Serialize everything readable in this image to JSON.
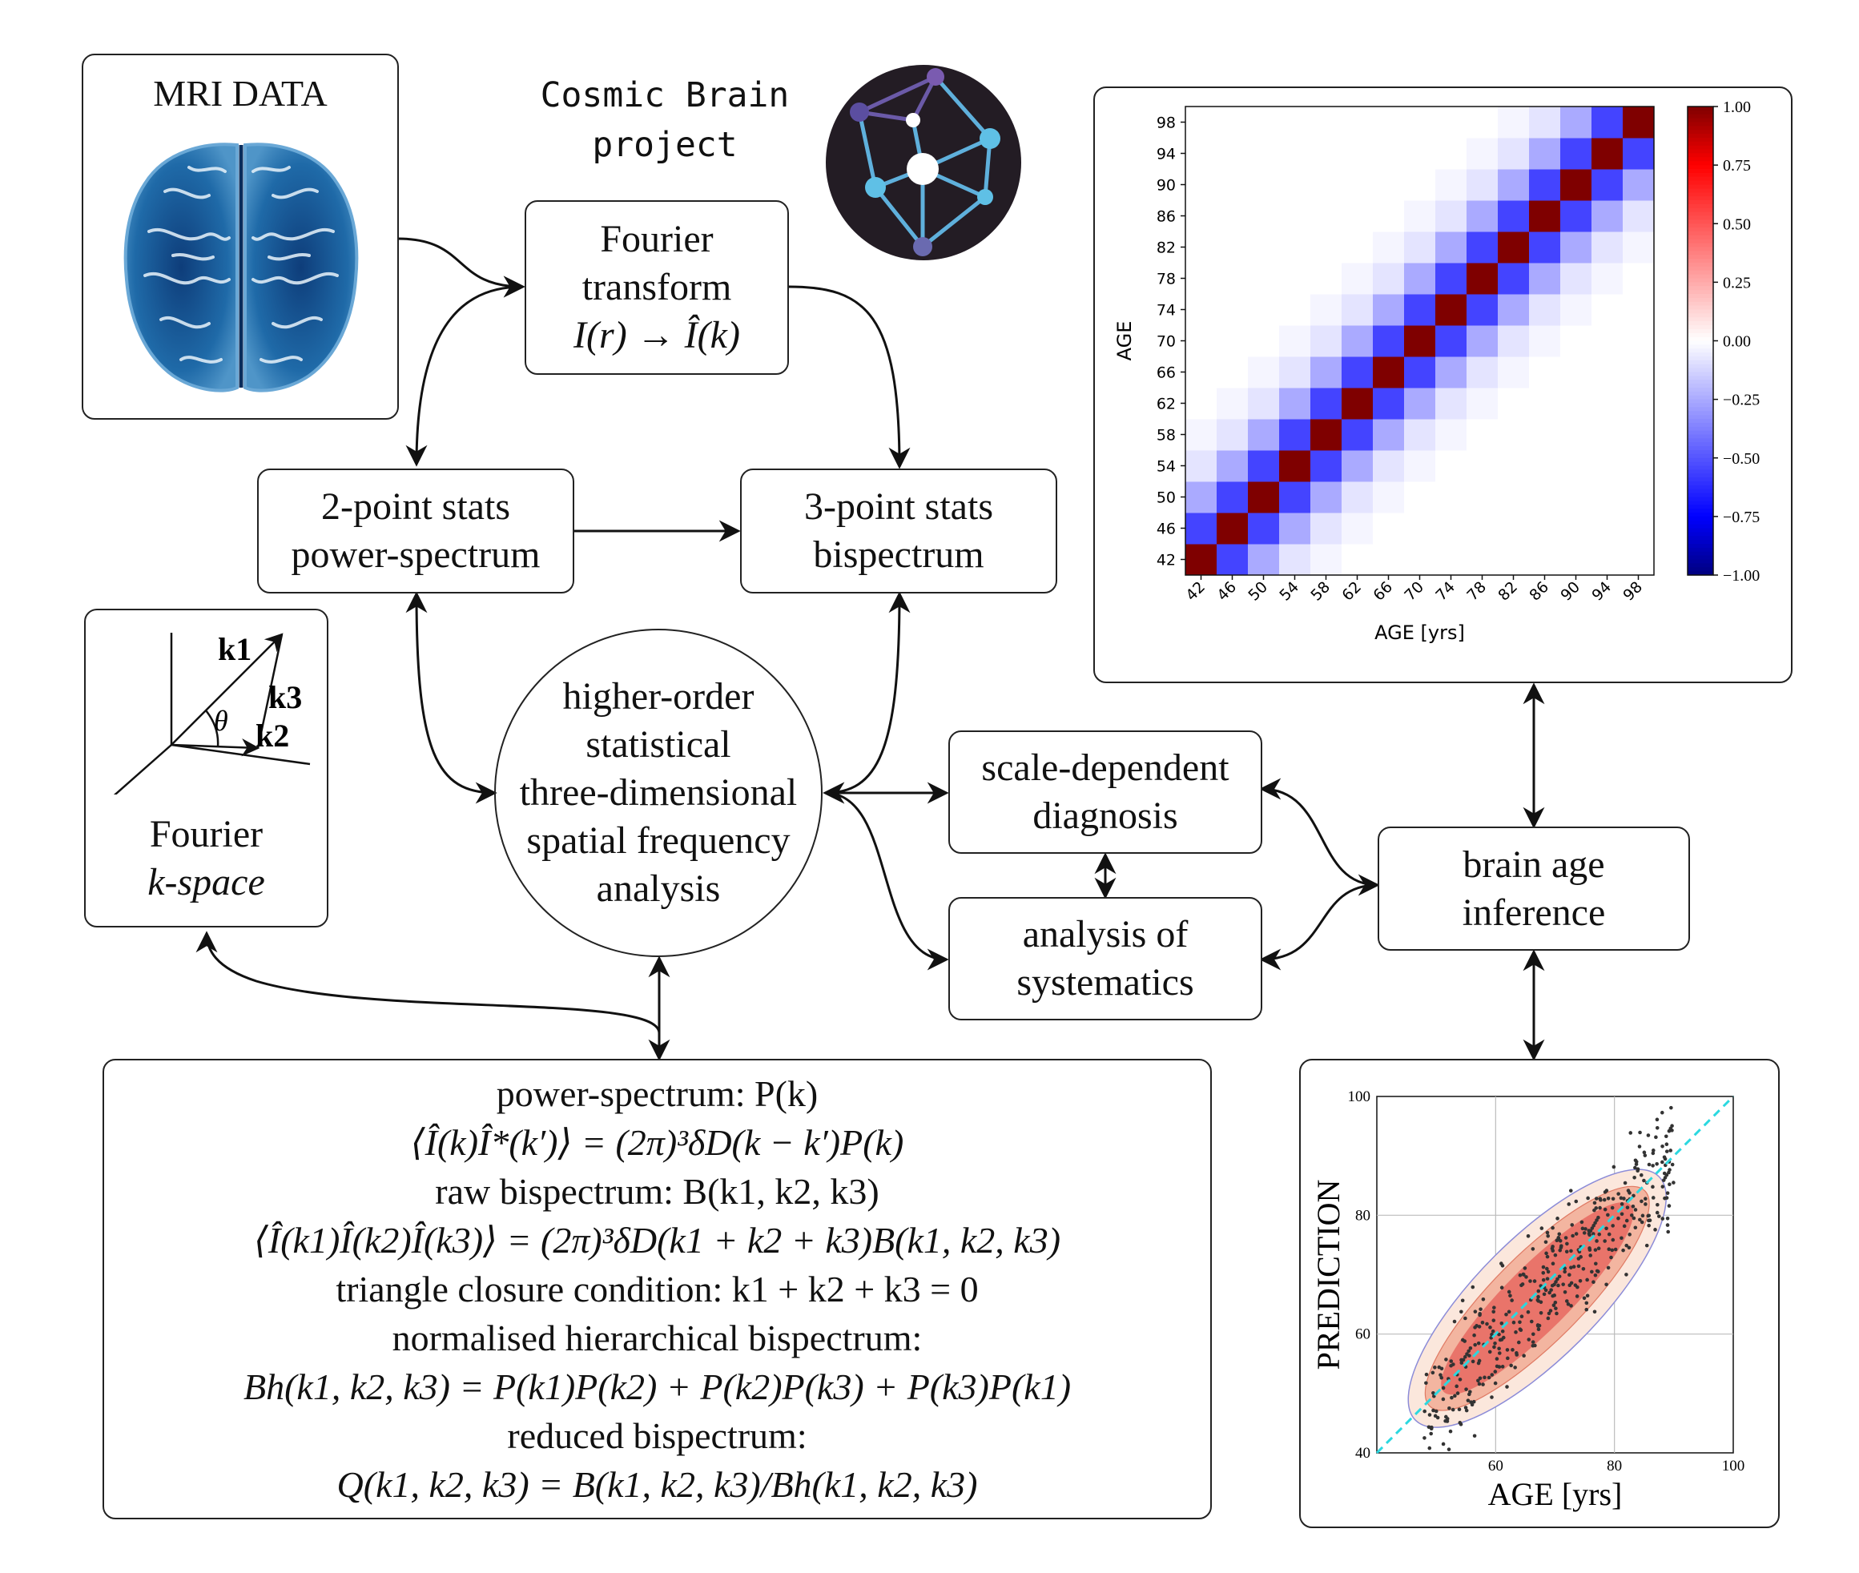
{
  "mri_box": {
    "title": "MRI DATA"
  },
  "project": {
    "line1": "Cosmic Brain",
    "line2": "project"
  },
  "fourier_transform": {
    "line1": "Fourier",
    "line2": "transform",
    "line3": "I(r) → Î(k)"
  },
  "two_point": {
    "line1": "2-point stats",
    "line2": "power-spectrum"
  },
  "three_point": {
    "line1": "3-point stats",
    "line2": "bispectrum"
  },
  "kspace": {
    "k1": "k1",
    "k2": "k2",
    "k3": "k3",
    "theta": "θ",
    "line1": "Fourier",
    "line2": "k-space"
  },
  "hos_circle": {
    "line1": "higher-order",
    "line2": "statistical",
    "line3": "three-dimensional",
    "line4": "spatial frequency",
    "line5": "analysis"
  },
  "scale_diag": {
    "line1": "scale-dependent",
    "line2": "diagnosis"
  },
  "systematics": {
    "line1": "analysis of",
    "line2": "systematics"
  },
  "brain_age": {
    "line1": "brain age",
    "line2": "inference"
  },
  "equations": {
    "l1": "power-spectrum:  P(k)",
    "l2": "⟨Î(k)Î*(k′)⟩ = (2π)³δD(k − k′)P(k)",
    "l3": "raw bispectrum:  B(k1, k2, k3)",
    "l4": "⟨Î(k1)Î(k2)Î(k3)⟩ = (2π)³δD(k1 + k2 + k3)B(k1, k2, k3)",
    "l5": "triangle closure condition:  k1 + k2 + k3 = 0",
    "l6": "normalised hierarchical bispectrum:",
    "l7": "Bh(k1, k2, k3) = P(k1)P(k2) + P(k2)P(k3) + P(k3)P(k1)",
    "l8": "reduced bispectrum:",
    "l9": "Q(k1, k2, k3) = B(k1, k2, k3)/Bh(k1, k2, k3)"
  },
  "colors": {
    "heat_pos": "#8b0000",
    "heat_neg": "#0000cc",
    "scatter_fill": "#e9746a",
    "diag_line": "#2bd8e0",
    "points": "#333333"
  },
  "chart_data": [
    {
      "type": "heatmap",
      "title": "",
      "xlabel": "AGE [yrs]",
      "ylabel": "AGE",
      "ticks": [
        "42",
        "46",
        "50",
        "54",
        "58",
        "62",
        "66",
        "70",
        "74",
        "78",
        "82",
        "86",
        "90",
        "94",
        "98"
      ],
      "colorbar": {
        "range": [
          -1.0,
          1.0
        ],
        "ticks": [
          "1.00",
          "0.75",
          "0.50",
          "0.25",
          "0.00",
          "−0.25",
          "−0.50",
          "−0.75",
          "−1.00"
        ]
      },
      "offdiagonal_by_distance": [
        1.0,
        -0.55,
        -0.25,
        -0.08,
        -0.03,
        0.0
      ]
    },
    {
      "type": "scatter",
      "title": "",
      "xlabel": "AGE    [yrs]",
      "ylabel": "PREDICTION",
      "xlim": [
        40,
        100
      ],
      "ylim": [
        40,
        100
      ],
      "xticks": [
        "60",
        "80",
        "100"
      ],
      "yticks": [
        "40",
        "60",
        "80",
        "100"
      ],
      "x_start_label": "",
      "relation": "prediction ≈ age, points spread about the 1:1 line",
      "grid": true
    }
  ]
}
